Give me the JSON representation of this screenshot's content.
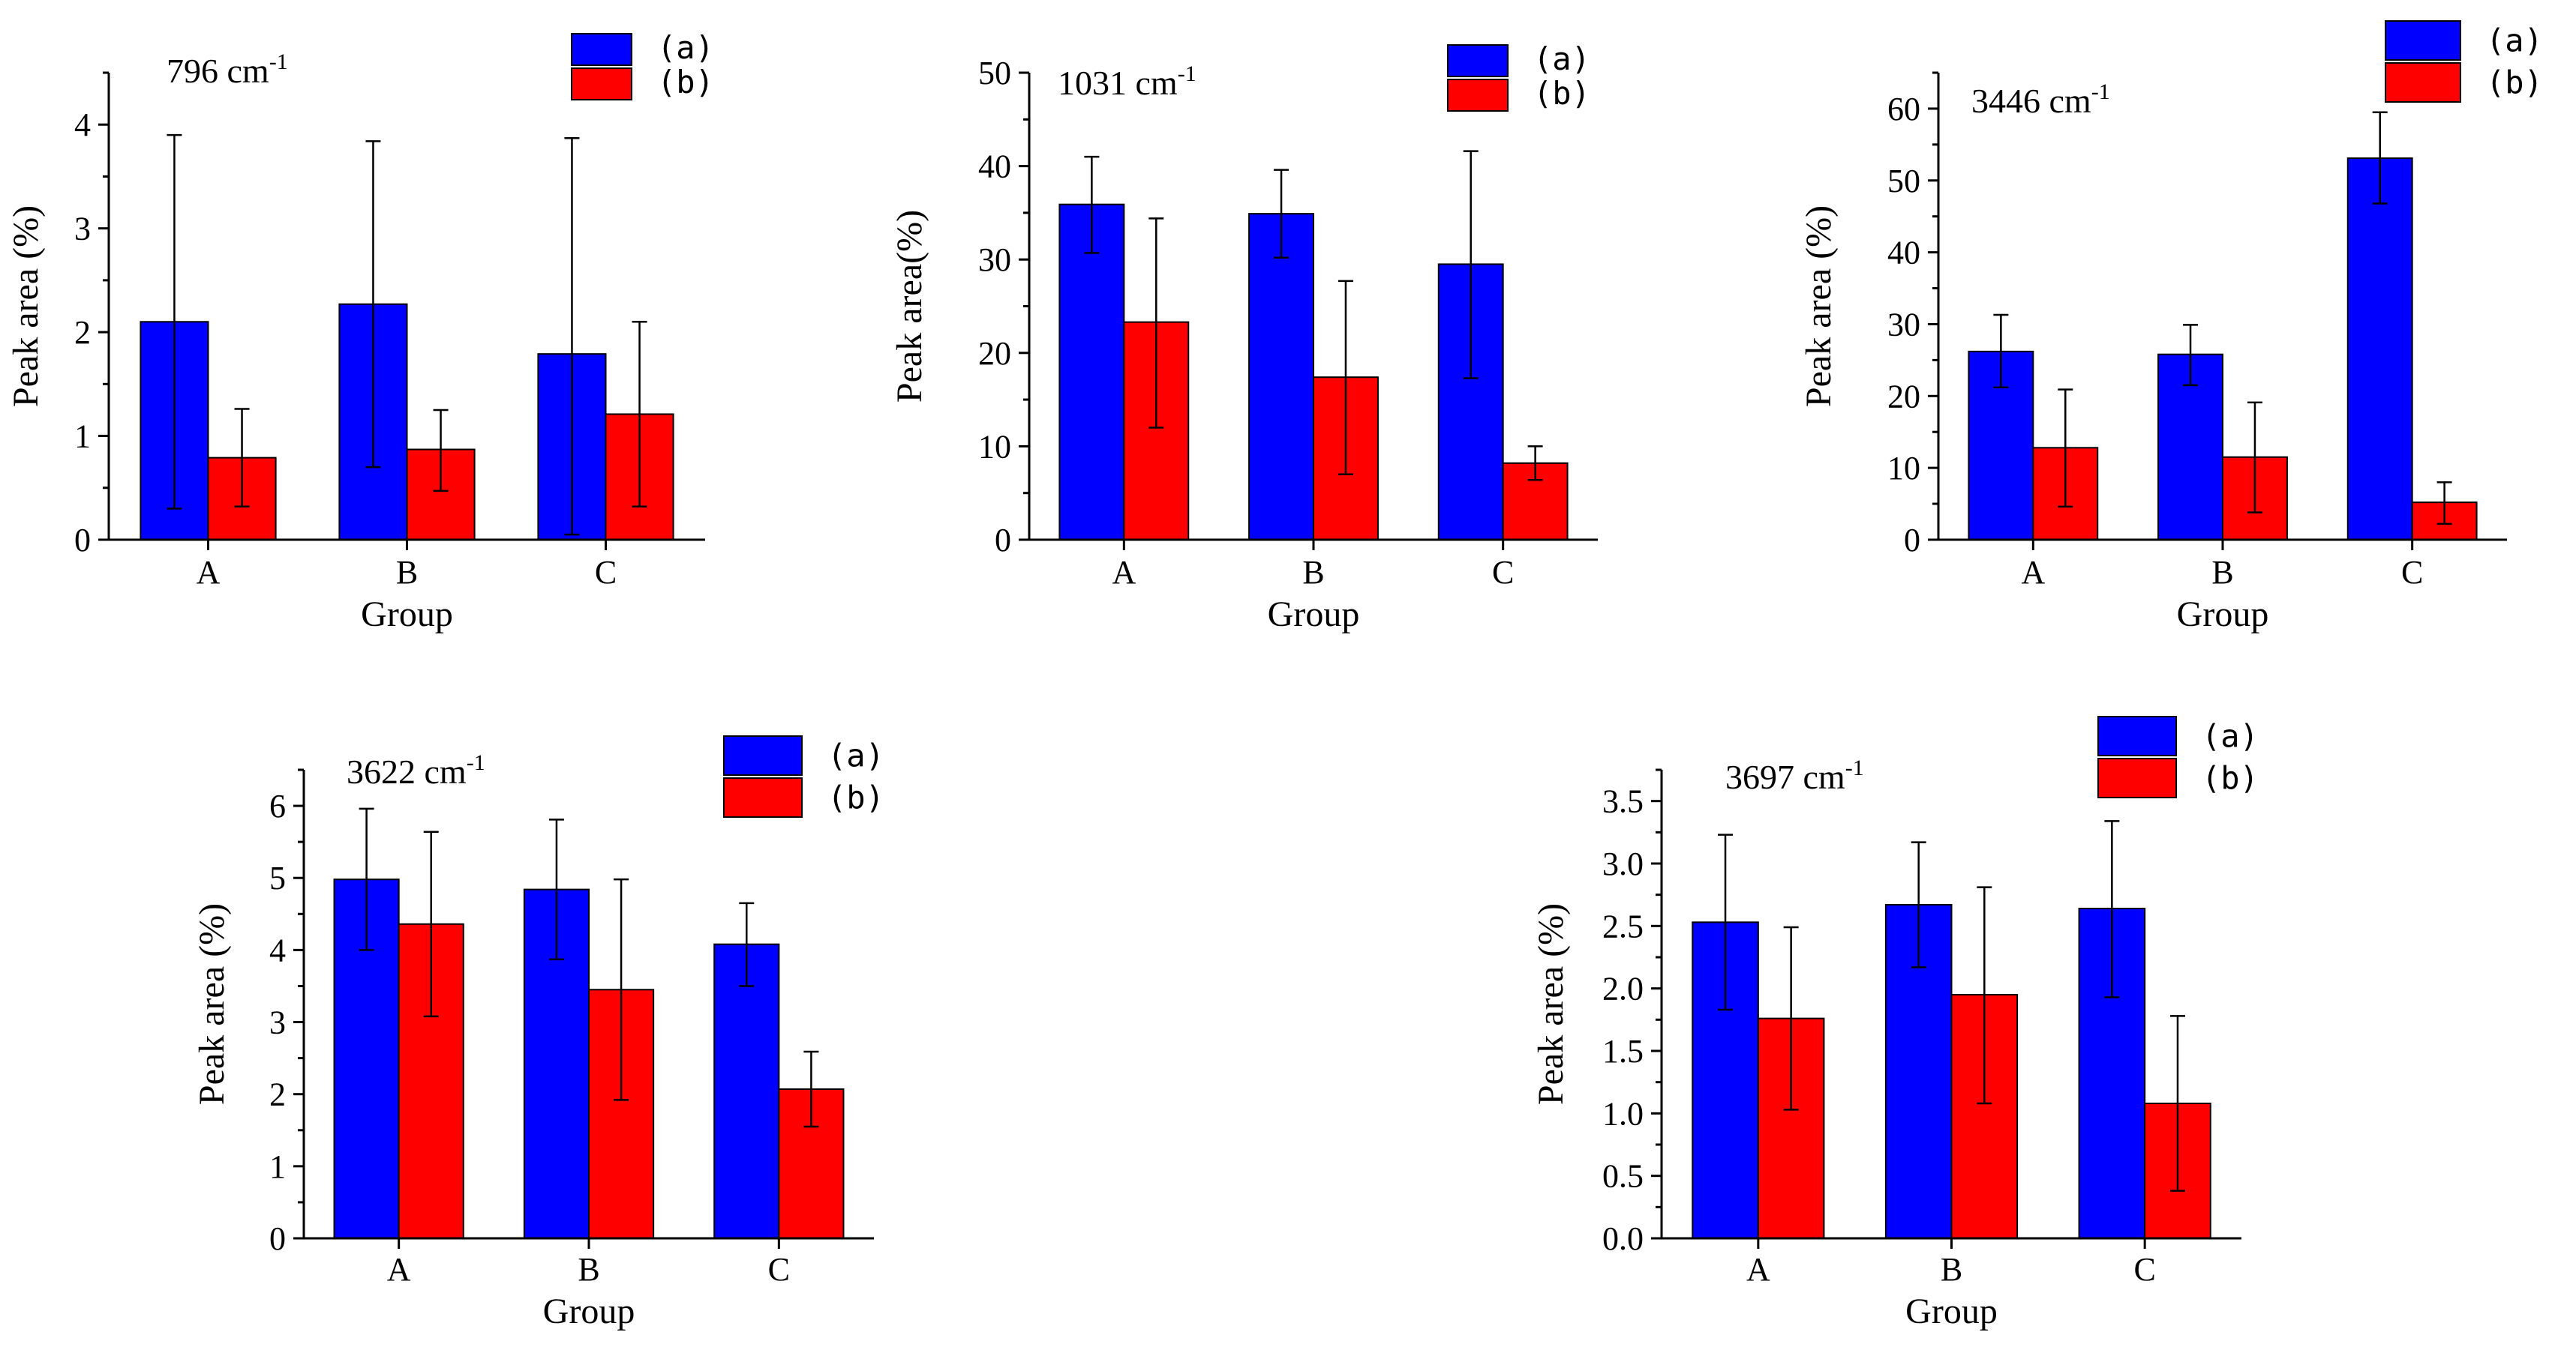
{
  "chart_data": [
    {
      "type": "bar",
      "peak": "796",
      "unit": "cm",
      "exponent": "-1",
      "xlabel": "Group",
      "ylabel": "Peak area (%)",
      "categories": [
        "A",
        "B",
        "C"
      ],
      "ylim": [
        0,
        4.5
      ],
      "yticks": [
        "0",
        "1",
        "2",
        "3",
        "4"
      ],
      "yminor": true,
      "series": [
        {
          "name": "(a)",
          "color": "#0000ff",
          "values": [
            2.1,
            2.27,
            1.79
          ],
          "err_low": [
            0.3,
            0.7,
            0.05
          ],
          "err_high": [
            3.9,
            3.84,
            3.87
          ]
        },
        {
          "name": "(b)",
          "color": "#ff0000",
          "values": [
            0.79,
            0.87,
            1.21
          ],
          "err_low": [
            0.32,
            0.47,
            0.32
          ],
          "err_high": [
            1.26,
            1.25,
            2.1
          ]
        }
      ]
    },
    {
      "type": "bar",
      "peak": "1031",
      "unit": "cm",
      "exponent": "-1",
      "xlabel": "Group",
      "ylabel": "Peak area(%)",
      "categories": [
        "A",
        "B",
        "C"
      ],
      "ylim": [
        0,
        50
      ],
      "yticks": [
        "0",
        "10",
        "20",
        "30",
        "40",
        "50"
      ],
      "yminor": true,
      "series": [
        {
          "name": "(a)",
          "color": "#0000ff",
          "values": [
            35.9,
            34.9,
            29.5
          ],
          "err_low": [
            30.7,
            30.2,
            17.3
          ],
          "err_high": [
            41.0,
            39.6,
            41.6
          ]
        },
        {
          "name": "(b)",
          "color": "#ff0000",
          "values": [
            23.3,
            17.4,
            8.2
          ],
          "err_low": [
            12.0,
            7.0,
            6.4
          ],
          "err_high": [
            34.4,
            27.7,
            10.0
          ]
        }
      ]
    },
    {
      "type": "bar",
      "peak": "3446",
      "unit": "cm",
      "exponent": "-1",
      "xlabel": "Group",
      "ylabel": "Peak area (%)",
      "categories": [
        "A",
        "B",
        "C"
      ],
      "ylim": [
        0,
        65
      ],
      "yticks": [
        "0",
        "10",
        "20",
        "30",
        "40",
        "50",
        "60"
      ],
      "yminor": true,
      "series": [
        {
          "name": "(a)",
          "color": "#0000ff",
          "values": [
            26.2,
            25.8,
            53.1
          ],
          "err_low": [
            21.2,
            21.5,
            46.8
          ],
          "err_high": [
            31.3,
            29.9,
            59.5
          ]
        },
        {
          "name": "(b)",
          "color": "#ff0000",
          "values": [
            12.8,
            11.5,
            5.2
          ],
          "err_low": [
            4.6,
            3.8,
            2.2
          ],
          "err_high": [
            20.9,
            19.1,
            8.0
          ]
        }
      ]
    },
    {
      "type": "bar",
      "peak": "3622",
      "unit": "cm",
      "exponent": "-1",
      "xlabel": "Group",
      "ylabel": "Peak area (%)",
      "categories": [
        "A",
        "B",
        "C"
      ],
      "ylim": [
        0,
        6.5
      ],
      "yticks": [
        "0",
        "1",
        "2",
        "3",
        "4",
        "5",
        "6"
      ],
      "yminor": true,
      "series": [
        {
          "name": "(a)",
          "color": "#0000ff",
          "values": [
            4.98,
            4.84,
            4.08
          ],
          "err_low": [
            4.0,
            3.87,
            3.5
          ],
          "err_high": [
            5.96,
            5.81,
            4.65
          ]
        },
        {
          "name": "(b)",
          "color": "#ff0000",
          "values": [
            4.36,
            3.45,
            2.07
          ],
          "err_low": [
            3.08,
            1.92,
            1.55
          ],
          "err_high": [
            5.64,
            4.98,
            2.59
          ]
        }
      ]
    },
    {
      "type": "bar",
      "peak": "3697",
      "unit": "cm",
      "exponent": "-1",
      "xlabel": "Group",
      "ylabel": "Peak area (%)",
      "categories": [
        "A",
        "B",
        "C"
      ],
      "ylim": [
        0,
        3.75
      ],
      "yticks": [
        "0.0",
        "0.5",
        "1.0",
        "1.5",
        "2.0",
        "2.5",
        "3.0",
        "3.5"
      ],
      "yminor": true,
      "series": [
        {
          "name": "(a)",
          "color": "#0000ff",
          "values": [
            2.53,
            2.67,
            2.64
          ],
          "err_low": [
            1.83,
            2.17,
            1.93
          ],
          "err_high": [
            3.23,
            3.17,
            3.34
          ]
        },
        {
          "name": "(b)",
          "color": "#ff0000",
          "values": [
            1.76,
            1.95,
            1.08
          ],
          "err_low": [
            1.03,
            1.08,
            0.38
          ],
          "err_high": [
            2.49,
            2.81,
            1.78
          ]
        }
      ]
    }
  ]
}
